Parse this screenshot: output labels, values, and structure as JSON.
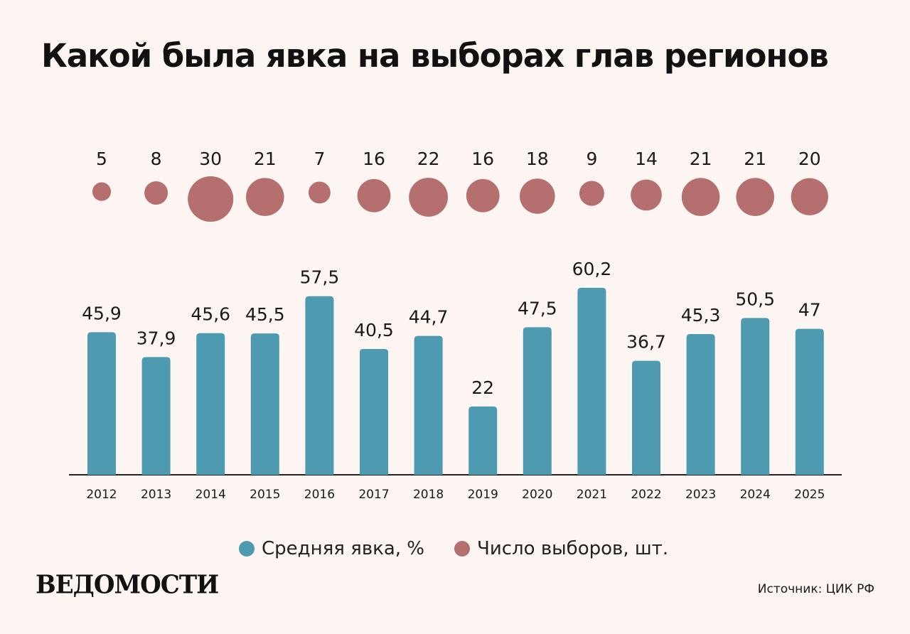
{
  "title": "Какой была явка на выборах глав регионов",
  "colors": {
    "bar": "#4e9ab1",
    "bubble": "#b56f6f",
    "background": "#fcf5f1"
  },
  "chart_data": {
    "type": "bar",
    "categories": [
      "2012",
      "2013",
      "2014",
      "2015",
      "2016",
      "2017",
      "2018",
      "2019",
      "2020",
      "2021",
      "2022",
      "2023",
      "2024",
      "2025"
    ],
    "series": [
      {
        "name": "Средняя явка, %",
        "type": "bar",
        "values": [
          45.9,
          37.9,
          45.6,
          45.5,
          57.5,
          40.5,
          44.7,
          22,
          47.5,
          60.2,
          36.7,
          45.3,
          50.5,
          47
        ],
        "labels": [
          "45,9",
          "37,9",
          "45,6",
          "45,5",
          "57,5",
          "40,5",
          "44,7",
          "22",
          "47,5",
          "60,2",
          "36,7",
          "45,3",
          "50,5",
          "47"
        ]
      },
      {
        "name": "Число выборов, шт.",
        "type": "bubble",
        "values": [
          5,
          8,
          30,
          21,
          7,
          16,
          22,
          16,
          18,
          9,
          14,
          21,
          21,
          20
        ]
      }
    ],
    "title": "Какой была явка на выборах глав регионов",
    "legend_position": "bottom",
    "grid": false
  },
  "legend": {
    "turnout": "Средняя явка, %",
    "count": "Число выборов, шт."
  },
  "logo": "ВЕДОМОСТИ",
  "source": "Источник: ЦИК РФ"
}
